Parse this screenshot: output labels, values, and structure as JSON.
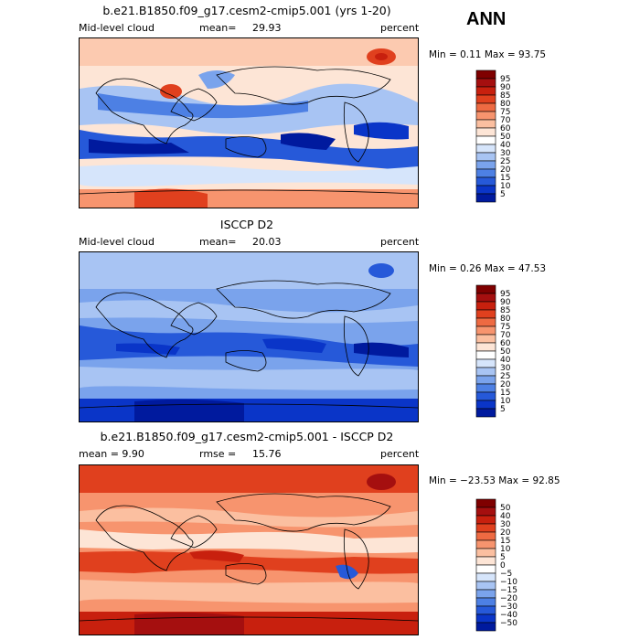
{
  "page": {
    "season": "ANN"
  },
  "panels": [
    {
      "title": "b.e21.B1850.f09_g17.cesm2-cmip5.001 (yrs 1-20)",
      "left_label": "Mid-level cloud",
      "stat_label": "mean=",
      "stat_value": "29.93",
      "unit": "percent",
      "range_text": "Min =    0.11 Max =  93.75",
      "scale": "abs"
    },
    {
      "title": "ISCCP D2",
      "left_label": "Mid-level cloud",
      "stat_label": "mean=",
      "stat_value": "20.03",
      "unit": "percent",
      "range_text": "Min =    0.26 Max =  47.53",
      "scale": "abs"
    },
    {
      "title": "b.e21.B1850.f09_g17.cesm2-cmip5.001 - ISCCP D2",
      "left_label": "mean =   9.90",
      "stat_label": "rmse =",
      "stat_value": "15.76",
      "unit": "percent",
      "range_text": "Min = −23.53 Max =  92.85",
      "scale": "diff"
    }
  ],
  "colorbars": {
    "abs": {
      "levels": [
        "95",
        "90",
        "85",
        "80",
        "75",
        "70",
        "60",
        "50",
        "40",
        "30",
        "25",
        "20",
        "15",
        "10",
        "5"
      ],
      "colors": [
        "#7f0000",
        "#a50f0f",
        "#c8200e",
        "#e0401e",
        "#ee6a42",
        "#f7946e",
        "#fbbfa0",
        "#fde5d6",
        "#ffffff",
        "#d6e5fb",
        "#a8c4f3",
        "#7aa3ec",
        "#4d80e4",
        "#2659d9",
        "#0a35c8",
        "#001a9e"
      ]
    },
    "diff": {
      "levels": [
        "50",
        "40",
        "30",
        "20",
        "15",
        "10",
        "5",
        "0",
        "−5",
        "−10",
        "−15",
        "−20",
        "−30",
        "−40",
        "−50"
      ],
      "colors": [
        "#7f0000",
        "#a50f0f",
        "#c8200e",
        "#e0401e",
        "#ee6a42",
        "#f7946e",
        "#fbbfa0",
        "#fde5d6",
        "#ffffff",
        "#d6e5fb",
        "#a8c4f3",
        "#7aa3ec",
        "#4d80e4",
        "#2659d9",
        "#0a35c8",
        "#001a9e"
      ]
    }
  }
}
